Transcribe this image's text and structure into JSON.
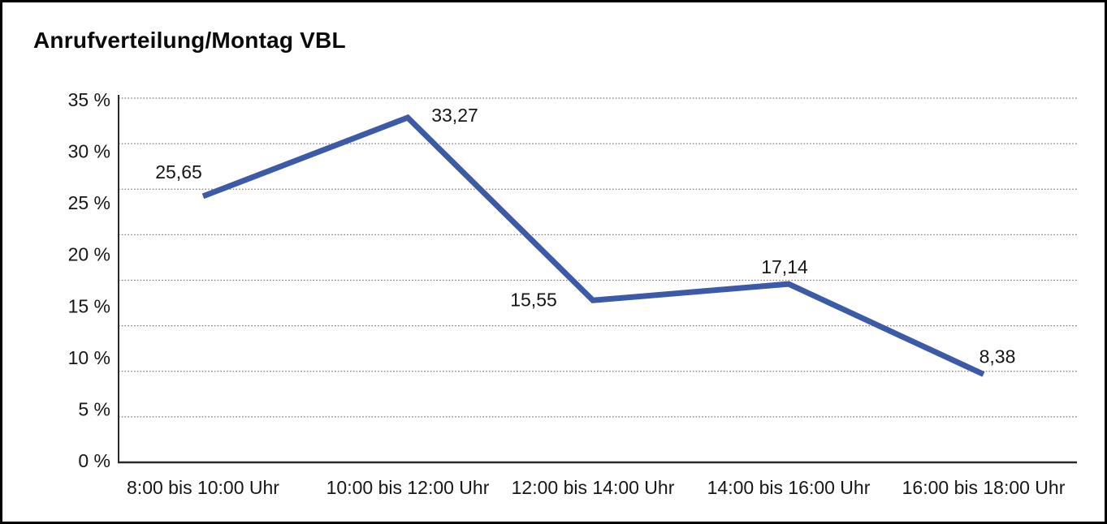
{
  "title": "Anrufverteilung/Montag VBL",
  "chart_data": {
    "type": "line",
    "title": "Anrufverteilung/Montag VBL",
    "categories": [
      "8:00 bis 10:00 Uhr",
      "10:00 bis 12:00 Uhr",
      "12:00 bis 14:00 Uhr",
      "14:00 bis 16:00 Uhr",
      "16:00 bis 18:00 Uhr"
    ],
    "values": [
      25.65,
      33.27,
      15.55,
      17.14,
      8.38
    ],
    "value_labels": [
      "25,65",
      "33,27",
      "15,55",
      "17,14",
      "8,38"
    ],
    "y_ticks": [
      "35 %",
      "30 %",
      "25 %",
      "20 %",
      "15 %",
      "10 %",
      "5 %",
      "0 %"
    ],
    "ylim": [
      0,
      35
    ],
    "y_tick_step": 5,
    "xlabel": "",
    "ylabel": "",
    "grid": "horizontal-dotted",
    "legend": "none",
    "colors": {
      "line": "#3C5AA7",
      "grid": "#7e7e7e",
      "axis": "#2a2a2a",
      "text": "#161616",
      "background": "#ffffff",
      "border": "#000000"
    }
  }
}
